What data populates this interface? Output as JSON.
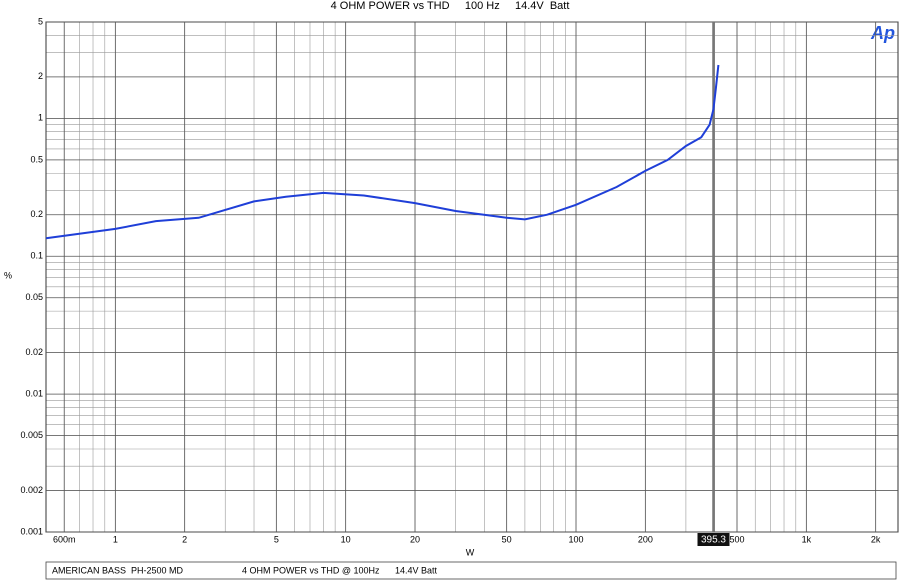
{
  "chart_data": {
    "type": "line",
    "title": "4 OHM POWER vs THD     100 Hz     14.4V  Batt",
    "xlabel": "W",
    "ylabel": "%",
    "logo": "Ap",
    "footer": [
      "AMERICAN BASS  PH-2500 MD",
      "4 OHM POWER vs THD @ 100Hz",
      "14.4V Batt"
    ],
    "xscale": "log",
    "yscale": "log",
    "grid": true,
    "minor_grid": true,
    "xlim": [
      0.5,
      2500
    ],
    "ylim": [
      0.001,
      5
    ],
    "xticks": [
      {
        "value": 0.6,
        "label": "600m"
      },
      1,
      2,
      5,
      10,
      20,
      50,
      100,
      200,
      500,
      {
        "value": 1000,
        "label": "1k"
      },
      {
        "value": 2000,
        "label": "2k"
      }
    ],
    "yticks": [
      5,
      2,
      1,
      0.5,
      0.2,
      0.1,
      0.05,
      0.02,
      0.01,
      0.005,
      0.002,
      0.001
    ],
    "cursor": 395.3,
    "series": [
      {
        "color": "#1f3fd8",
        "x": [
          0.5,
          1,
          1.5,
          2.3,
          4,
          5.5,
          8,
          12,
          20,
          30,
          50,
          60,
          75,
          100,
          150,
          200,
          250,
          300,
          350,
          380,
          395,
          405,
          415
        ],
        "values": [
          0.135,
          0.158,
          0.18,
          0.19,
          0.25,
          0.27,
          0.288,
          0.276,
          0.243,
          0.213,
          0.19,
          0.185,
          0.2,
          0.236,
          0.318,
          0.416,
          0.5,
          0.63,
          0.73,
          0.9,
          1.16,
          1.66,
          2.44
        ]
      }
    ]
  }
}
